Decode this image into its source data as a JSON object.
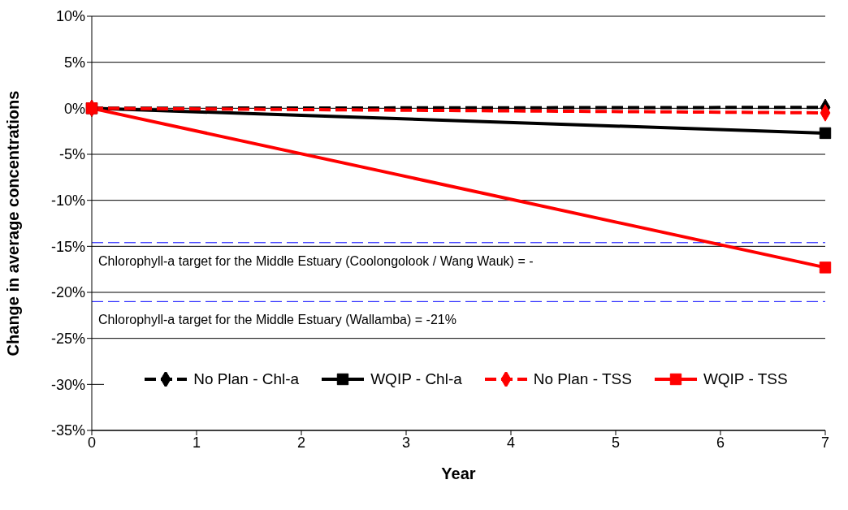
{
  "chart_data": {
    "type": "line",
    "xlabel": "Year",
    "ylabel": "Change in average concentrations",
    "x": [
      0,
      7
    ],
    "xlim": [
      0,
      7
    ],
    "xticks": [
      0,
      1,
      2,
      3,
      4,
      5,
      6,
      7
    ],
    "ylim": [
      -35,
      10
    ],
    "yticks": [
      {
        "value": -35,
        "label": "-35%"
      },
      {
        "value": -30,
        "label": "-30%"
      },
      {
        "value": -25,
        "label": "-25%"
      },
      {
        "value": -20,
        "label": "-20%"
      },
      {
        "value": -15,
        "label": "-15%"
      },
      {
        "value": -10,
        "label": "-10%"
      },
      {
        "value": -5,
        "label": "-5%"
      },
      {
        "value": 0,
        "label": "0%"
      },
      {
        "value": 5,
        "label": "5%"
      },
      {
        "value": 10,
        "label": "10%"
      }
    ],
    "series": [
      {
        "name": "No Plan -  Chl-a",
        "color": "#000000",
        "values": [
          0,
          0.1
        ],
        "marker": "diamond",
        "line_style": "dashed"
      },
      {
        "name": "WQIP -  Chl-a",
        "color": "#000000",
        "values": [
          0,
          -2.7
        ],
        "marker": "square",
        "line_style": "solid"
      },
      {
        "name": "No Plan -  TSS",
        "color": "#ff0000",
        "values": [
          0,
          -0.5
        ],
        "marker": "diamond",
        "line_style": "dashed"
      },
      {
        "name": "WQIP -  TSS",
        "color": "#ff0000",
        "values": [
          0,
          -17.3
        ],
        "marker": "square",
        "line_style": "solid"
      }
    ],
    "ref_lines": [
      {
        "axis": "y",
        "value": -14.6,
        "label": "Chlorophyll-a target for the Middle Estuary (Coolongolook / Wang Wauk)  = -",
        "color": "#0000ff",
        "line_style": "dashed"
      },
      {
        "axis": "y",
        "value": -21,
        "label": "Chlorophyll-a target for the Middle Estuary (Wallamba)  = -21%",
        "color": "#0000ff",
        "line_style": "dashed"
      }
    ],
    "grid": "y",
    "legend": "bottom"
  }
}
